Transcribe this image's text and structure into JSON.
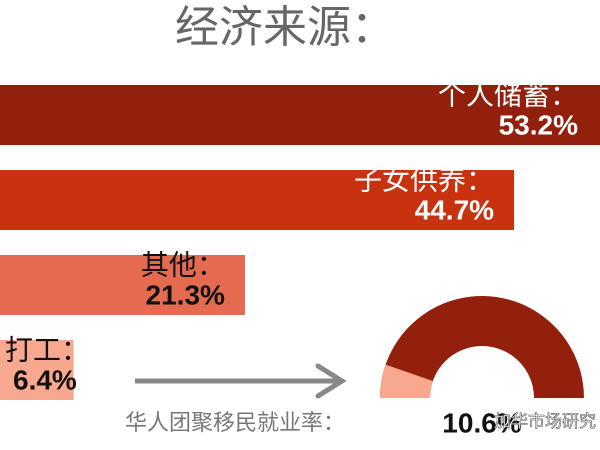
{
  "chart_data": [
    {
      "type": "bar",
      "title": "经济来源：",
      "categories": [
        "个人储蓄：",
        "子女供养：",
        "其他：",
        "打工："
      ],
      "values": [
        53.2,
        44.7,
        21.3,
        6.4
      ],
      "value_labels": [
        "53.2%",
        "44.7%",
        "21.3%",
        "6.4%"
      ],
      "colors": [
        "#92200c",
        "#c9320f",
        "#e46b50",
        "#f7a88e"
      ]
    },
    {
      "type": "gauge",
      "title": "华人团聚移民就业率：",
      "values": [
        10.6
      ],
      "value_labels": [
        "10.6%"
      ],
      "color": "#f7a88e",
      "track_color": "#92200c"
    }
  ],
  "watermark": "加华市场研究"
}
